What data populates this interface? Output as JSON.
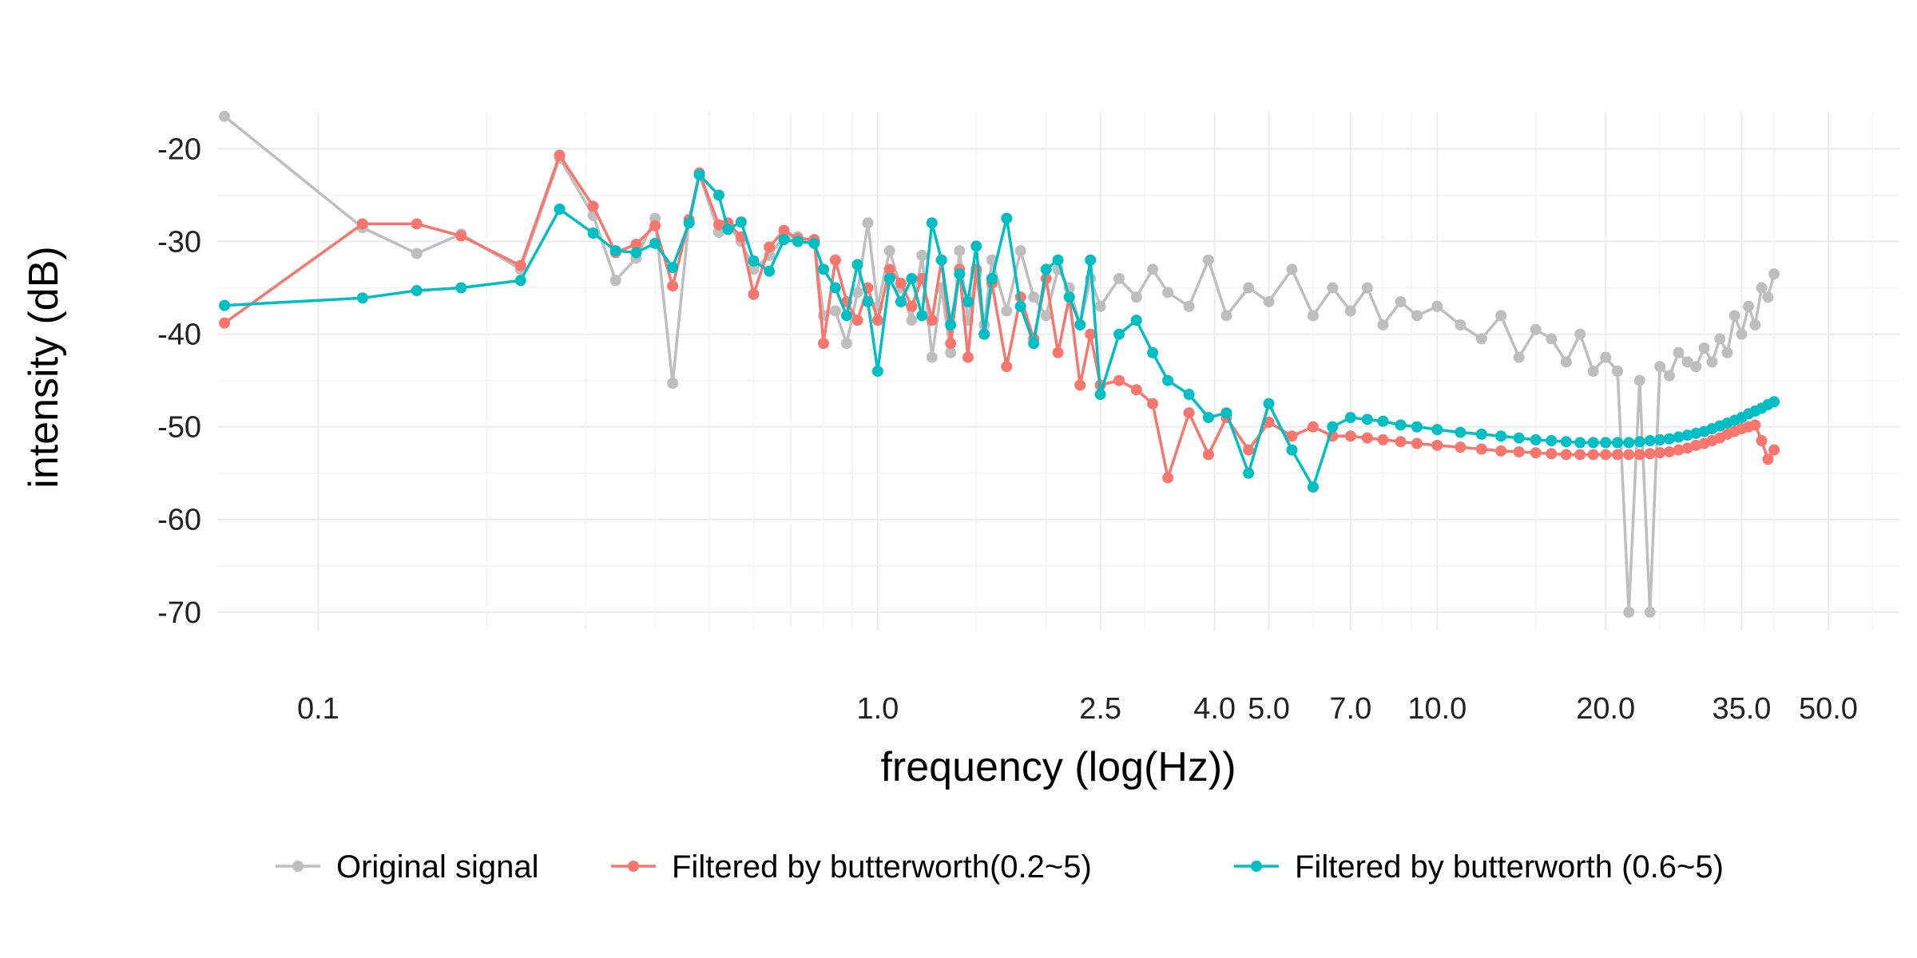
{
  "chart_data": {
    "type": "line",
    "title": "",
    "xlabel": "frequency (log(Hz))",
    "ylabel": "intensity (dB)",
    "x_scale": "log10",
    "xlim": [
      0.066,
      67
    ],
    "ylim": [
      -72,
      -16
    ],
    "x_ticks": [
      0.1,
      1.0,
      2.5,
      4.0,
      5.0,
      7.0,
      10.0,
      20.0,
      35.0,
      50.0
    ],
    "x_tick_labels": [
      "0.1",
      "1.0",
      "2.5",
      "4.0",
      "5.0",
      "7.0",
      "10.0",
      "20.0",
      "35.0",
      "50.0"
    ],
    "y_ticks": [
      -20,
      -30,
      -40,
      -50,
      -60,
      -70
    ],
    "y_tick_labels": [
      "-20",
      "-30",
      "-40",
      "-50",
      "-60",
      "-70"
    ],
    "grid": true,
    "legend_position": "bottom",
    "series": [
      {
        "name": "Original signal",
        "color": "#bebebe",
        "x": [
          0.068,
          0.12,
          0.15,
          0.18,
          0.23,
          0.27,
          0.31,
          0.34,
          0.37,
          0.4,
          0.43,
          0.46,
          0.48,
          0.52,
          0.54,
          0.57,
          0.6,
          0.64,
          0.68,
          0.72,
          0.77,
          0.8,
          0.84,
          0.88,
          0.92,
          0.96,
          1.0,
          1.05,
          1.1,
          1.15,
          1.2,
          1.25,
          1.3,
          1.35,
          1.4,
          1.45,
          1.5,
          1.55,
          1.6,
          1.7,
          1.8,
          1.9,
          2.0,
          2.1,
          2.2,
          2.3,
          2.4,
          2.5,
          2.7,
          2.9,
          3.1,
          3.3,
          3.6,
          3.9,
          4.2,
          4.6,
          5.0,
          5.5,
          6.0,
          6.5,
          7.0,
          7.5,
          8.0,
          8.6,
          9.2,
          10.0,
          11.0,
          12.0,
          13.0,
          14.0,
          15.0,
          16.0,
          17.0,
          18.0,
          19.0,
          20.0,
          21.0,
          22.0,
          23.0,
          24.0,
          25.0,
          26.0,
          27.0,
          28.0,
          29.0,
          30.0,
          31.0,
          32.0,
          33.0,
          34.0,
          35.0,
          36.0,
          37.0,
          38.0,
          39.0,
          40.0
        ],
        "y": [
          -16.5,
          -28.5,
          -31.3,
          -29.2,
          -33.0,
          -21.0,
          -27.2,
          -34.2,
          -31.8,
          -27.5,
          -45.3,
          -27.6,
          -22.8,
          -29.0,
          -28.2,
          -30.0,
          -33.0,
          -31.5,
          -29.5,
          -29.5,
          -30.0,
          -38.0,
          -37.5,
          -41.0,
          -35.5,
          -28.0,
          -37.0,
          -31.0,
          -35.0,
          -38.5,
          -31.5,
          -42.5,
          -35.0,
          -42.0,
          -31.0,
          -38.5,
          -33.5,
          -39.0,
          -32.0,
          -37.5,
          -31.0,
          -36.0,
          -38.0,
          -33.0,
          -35.0,
          -39.0,
          -34.0,
          -37.0,
          -34.0,
          -36.0,
          -33.0,
          -35.5,
          -37.0,
          -32.0,
          -38.0,
          -35.0,
          -36.5,
          -33.0,
          -38.0,
          -35.0,
          -37.5,
          -35.0,
          -39.0,
          -36.5,
          -38.0,
          -37.0,
          -39.0,
          -40.5,
          -38.0,
          -42.5,
          -39.5,
          -40.5,
          -43.0,
          -40.0,
          -44.0,
          -42.5,
          -44.0,
          -70.0,
          -45.0,
          -70.0,
          -43.5,
          -44.5,
          -42.0,
          -43.0,
          -43.5,
          -41.5,
          -43.0,
          -40.5,
          -42.0,
          -38.0,
          -40.0,
          -37.0,
          -39.0,
          -35.0,
          -36.0,
          -33.5
        ]
      },
      {
        "name": "Filtered by butterworth(0.2~5)",
        "color": "#f8766d",
        "x": [
          0.068,
          0.12,
          0.15,
          0.18,
          0.23,
          0.27,
          0.31,
          0.34,
          0.37,
          0.4,
          0.43,
          0.46,
          0.48,
          0.52,
          0.54,
          0.57,
          0.6,
          0.64,
          0.68,
          0.72,
          0.77,
          0.8,
          0.84,
          0.88,
          0.92,
          0.96,
          1.0,
          1.05,
          1.1,
          1.15,
          1.2,
          1.25,
          1.3,
          1.35,
          1.4,
          1.45,
          1.5,
          1.55,
          1.6,
          1.7,
          1.8,
          1.9,
          2.0,
          2.1,
          2.2,
          2.3,
          2.4,
          2.5,
          2.7,
          2.9,
          3.1,
          3.3,
          3.6,
          3.9,
          4.2,
          4.6,
          5.0,
          5.5,
          6.0,
          6.5,
          7.0,
          7.5,
          8.0,
          8.6,
          9.2,
          10.0,
          11.0,
          12.0,
          13.0,
          14.0,
          15.0,
          16.0,
          17.0,
          18.0,
          19.0,
          20.0,
          21.0,
          22.0,
          23.0,
          24.0,
          25.0,
          26.0,
          27.0,
          28.0,
          29.0,
          30.0,
          31.0,
          32.0,
          33.0,
          34.0,
          35.0,
          36.0,
          37.0,
          38.0,
          39.0,
          40.0
        ],
        "y": [
          -38.8,
          -28.1,
          -28.1,
          -29.4,
          -32.6,
          -20.7,
          -26.2,
          -31.2,
          -30.3,
          -28.3,
          -34.8,
          -27.7,
          -22.6,
          -28.2,
          -28.0,
          -29.5,
          -35.7,
          -30.6,
          -28.8,
          -29.7,
          -29.8,
          -41.0,
          -32.0,
          -36.5,
          -38.5,
          -35.0,
          -38.5,
          -33.0,
          -34.5,
          -37.0,
          -34.0,
          -38.5,
          -32.0,
          -41.0,
          -33.0,
          -42.5,
          -33.0,
          -40.0,
          -34.5,
          -43.5,
          -36.0,
          -40.5,
          -34.0,
          -42.0,
          -36.0,
          -45.5,
          -40.0,
          -45.5,
          -45.0,
          -46.0,
          -47.5,
          -55.5,
          -48.5,
          -53.0,
          -49.0,
          -52.5,
          -49.5,
          -51.0,
          -50.0,
          -51.0,
          -51.0,
          -51.2,
          -51.4,
          -51.6,
          -51.8,
          -52.0,
          -52.2,
          -52.4,
          -52.6,
          -52.7,
          -52.8,
          -52.9,
          -53.0,
          -53.0,
          -53.0,
          -53.0,
          -53.0,
          -53.0,
          -53.0,
          -52.9,
          -52.8,
          -52.7,
          -52.5,
          -52.3,
          -52.0,
          -51.8,
          -51.5,
          -51.2,
          -50.8,
          -50.5,
          -50.2,
          -50.0,
          -49.8,
          -51.5,
          -53.5,
          -52.5
        ]
      },
      {
        "name": "Filtered by butterworth (0.6~5)",
        "color": "#00bfc4",
        "x": [
          0.068,
          0.12,
          0.15,
          0.18,
          0.23,
          0.27,
          0.31,
          0.34,
          0.37,
          0.4,
          0.43,
          0.46,
          0.48,
          0.52,
          0.54,
          0.57,
          0.6,
          0.64,
          0.68,
          0.72,
          0.77,
          0.8,
          0.84,
          0.88,
          0.92,
          0.96,
          1.0,
          1.05,
          1.1,
          1.15,
          1.2,
          1.25,
          1.3,
          1.35,
          1.4,
          1.45,
          1.5,
          1.55,
          1.6,
          1.7,
          1.8,
          1.9,
          2.0,
          2.1,
          2.2,
          2.3,
          2.4,
          2.5,
          2.7,
          2.9,
          3.1,
          3.3,
          3.6,
          3.9,
          4.2,
          4.6,
          5.0,
          5.5,
          6.0,
          6.5,
          7.0,
          7.5,
          8.0,
          8.6,
          9.2,
          10.0,
          11.0,
          12.0,
          13.0,
          14.0,
          15.0,
          16.0,
          17.0,
          18.0,
          19.0,
          20.0,
          21.0,
          22.0,
          23.0,
          24.0,
          25.0,
          26.0,
          27.0,
          28.0,
          29.0,
          30.0,
          31.0,
          32.0,
          33.0,
          34.0,
          35.0,
          36.0,
          37.0,
          38.0,
          39.0,
          40.0
        ],
        "y": [
          -36.9,
          -36.1,
          -35.3,
          -35.0,
          -34.2,
          -26.5,
          -29.1,
          -31.0,
          -31.2,
          -30.2,
          -32.8,
          -28.0,
          -22.8,
          -25.0,
          -28.7,
          -27.9,
          -32.1,
          -33.2,
          -29.8,
          -30.0,
          -30.2,
          -33.0,
          -35.0,
          -38.0,
          -32.5,
          -36.5,
          -44.0,
          -34.0,
          -36.5,
          -34.0,
          -38.0,
          -28.0,
          -32.0,
          -39.0,
          -33.5,
          -36.5,
          -30.5,
          -40.0,
          -34.0,
          -27.5,
          -37.0,
          -41.0,
          -33.0,
          -32.0,
          -36.0,
          -39.0,
          -32.0,
          -46.5,
          -40.0,
          -38.5,
          -42.0,
          -45.0,
          -46.5,
          -49.0,
          -48.5,
          -55.0,
          -47.5,
          -52.5,
          -56.5,
          -50.0,
          -49.0,
          -49.2,
          -49.4,
          -49.8,
          -50.0,
          -50.3,
          -50.6,
          -50.8,
          -51.0,
          -51.2,
          -51.4,
          -51.5,
          -51.6,
          -51.7,
          -51.7,
          -51.7,
          -51.7,
          -51.7,
          -51.6,
          -51.5,
          -51.4,
          -51.3,
          -51.1,
          -50.9,
          -50.7,
          -50.5,
          -50.2,
          -49.9,
          -49.6,
          -49.3,
          -49.0,
          -48.6,
          -48.3,
          -48.0,
          -47.6,
          -47.3
        ]
      }
    ]
  }
}
